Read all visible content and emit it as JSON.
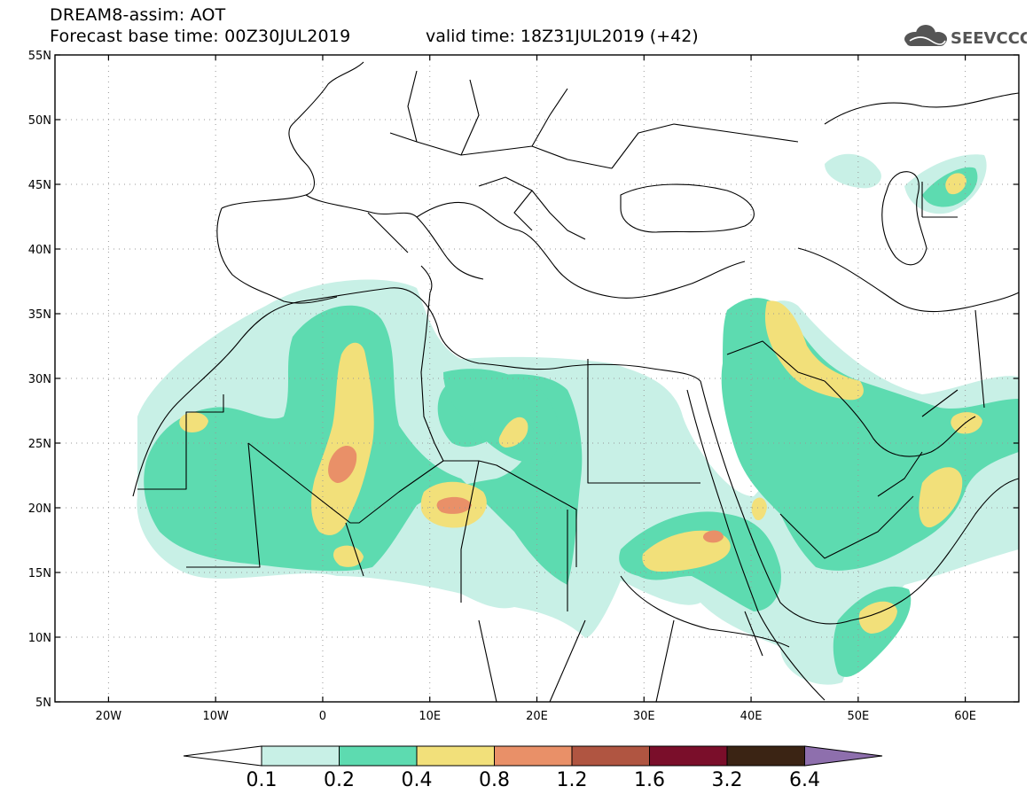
{
  "header": {
    "title_line1": "DREAM8-assim: AOT",
    "title_line2": "Forecast base time: 00Z30JUL2019",
    "valid_time": "valid time: 18Z31JUL2019 (+42)",
    "logo_text": "SEEVCCC"
  },
  "map": {
    "lat_labels": [
      "55N",
      "50N",
      "45N",
      "40N",
      "35N",
      "30N",
      "25N",
      "20N",
      "15N",
      "10N",
      "5N"
    ],
    "lon_labels": [
      "20W",
      "10W",
      "0",
      "10E",
      "20E",
      "30E",
      "40E",
      "50E",
      "60E"
    ],
    "lon_range": [
      -25,
      65
    ],
    "lat_range": [
      5,
      55
    ]
  },
  "colorbar": {
    "labels": [
      "0.1",
      "0.2",
      "0.4",
      "0.8",
      "1.2",
      "1.6",
      "3.2",
      "6.4"
    ],
    "colors": [
      "#c8f0e6",
      "#5ddbb0",
      "#f2e07a",
      "#e99068",
      "#b05541",
      "#7a0e2a",
      "#3b2414",
      "#8e6fad"
    ]
  }
}
